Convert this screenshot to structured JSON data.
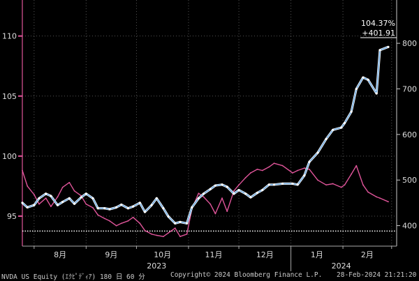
{
  "chart_data": {
    "type": "line",
    "title": "",
    "xlabel": "",
    "ylabel": "",
    "x_tick_labels": [
      "8月",
      "9月",
      "10月",
      "11月",
      "12月",
      "1月",
      "2月"
    ],
    "year_labels": [
      "2023",
      "2024"
    ],
    "left_axis": {
      "ticks": [
        95,
        100,
        105,
        110
      ],
      "range": [
        92.5,
        113
      ]
    },
    "right_axis": {
      "ticks": [
        400,
        500,
        600,
        700,
        800
      ],
      "range": [
        355,
        895
      ]
    },
    "reference_line": {
      "axis": "right",
      "value": 388,
      "style": "dotted"
    },
    "readout": {
      "percent": "104.37%",
      "price": "+401.91"
    },
    "series": [
      {
        "axis": "left",
        "color": "#e0559a",
        "x": [
          "2023-07-25",
          "2023-07-28",
          "2023-08-01",
          "2023-08-04",
          "2023-08-08",
          "2023-08-11",
          "2023-08-15",
          "2023-08-18",
          "2023-08-22",
          "2023-08-25",
          "2023-08-29",
          "2023-09-01",
          "2023-09-05",
          "2023-09-08",
          "2023-09-12",
          "2023-09-15",
          "2023-09-19",
          "2023-09-22",
          "2023-09-26",
          "2023-09-29",
          "2023-10-03",
          "2023-10-06",
          "2023-10-10",
          "2023-10-13",
          "2023-10-17",
          "2023-10-20",
          "2023-10-24",
          "2023-10-27",
          "2023-10-31",
          "2023-11-03",
          "2023-11-07",
          "2023-11-10",
          "2023-11-14",
          "2023-11-17",
          "2023-11-21",
          "2023-11-24",
          "2023-11-28",
          "2023-12-01",
          "2023-12-05",
          "2023-12-08",
          "2023-12-12",
          "2023-12-15",
          "2023-12-19",
          "2023-12-22",
          "2023-12-27",
          "2024-01-02",
          "2024-01-05",
          "2024-01-09",
          "2024-01-12",
          "2024-01-17",
          "2024-01-22",
          "2024-01-26",
          "2024-01-31",
          "2024-02-02",
          "2024-02-06",
          "2024-02-09",
          "2024-02-13",
          "2024-02-16",
          "2024-02-21",
          "2024-02-23",
          "2024-02-28"
        ],
        "y": [
          98.8,
          97.5,
          96.8,
          96.0,
          96.5,
          95.8,
          96.6,
          97.4,
          97.8,
          97.1,
          96.7,
          96.0,
          95.7,
          95.1,
          94.8,
          94.6,
          94.2,
          94.4,
          94.6,
          94.9,
          94.4,
          93.8,
          93.5,
          93.4,
          93.3,
          93.6,
          94.0,
          93.3,
          93.5,
          95.6,
          96.9,
          96.6,
          96.0,
          95.2,
          96.5,
          95.4,
          97.1,
          97.6,
          98.2,
          98.6,
          98.9,
          98.8,
          99.1,
          99.4,
          99.2,
          98.6,
          98.8,
          99.0,
          98.9,
          98.0,
          97.6,
          97.7,
          97.4,
          97.6,
          98.5,
          99.2,
          97.6,
          97.0,
          96.6,
          96.5,
          96.2
        ]
      },
      {
        "axis": "right",
        "color": "#6ea9e0",
        "x": [
          "2023-07-25",
          "2023-07-28",
          "2023-08-01",
          "2023-08-04",
          "2023-08-08",
          "2023-08-11",
          "2023-08-15",
          "2023-08-18",
          "2023-08-22",
          "2023-08-25",
          "2023-08-29",
          "2023-09-01",
          "2023-09-05",
          "2023-09-08",
          "2023-09-12",
          "2023-09-15",
          "2023-09-19",
          "2023-09-22",
          "2023-09-26",
          "2023-09-29",
          "2023-10-03",
          "2023-10-06",
          "2023-10-10",
          "2023-10-13",
          "2023-10-17",
          "2023-10-20",
          "2023-10-24",
          "2023-10-27",
          "2023-10-31",
          "2023-11-03",
          "2023-11-07",
          "2023-11-10",
          "2023-11-14",
          "2023-11-17",
          "2023-11-21",
          "2023-11-24",
          "2023-11-28",
          "2023-12-01",
          "2023-12-05",
          "2023-12-08",
          "2023-12-12",
          "2023-12-15",
          "2023-12-19",
          "2023-12-22",
          "2023-12-27",
          "2024-01-02",
          "2024-01-05",
          "2024-01-09",
          "2024-01-12",
          "2024-01-17",
          "2024-01-22",
          "2024-01-26",
          "2024-01-31",
          "2024-02-02",
          "2024-02-06",
          "2024-02-09",
          "2024-02-13",
          "2024-02-16",
          "2024-02-21",
          "2024-02-23",
          "2024-02-28"
        ],
        "y": [
          450,
          440,
          445,
          460,
          470,
          465,
          445,
          452,
          460,
          448,
          462,
          470,
          460,
          438,
          438,
          436,
          440,
          446,
          438,
          442,
          450,
          430,
          445,
          460,
          438,
          420,
          405,
          408,
          405,
          440,
          460,
          470,
          480,
          488,
          490,
          485,
          470,
          478,
          470,
          462,
          472,
          478,
          490,
          490,
          492,
          492,
          490,
          510,
          540,
          560,
          590,
          610,
          615,
          625,
          650,
          700,
          725,
          720,
          690,
          785,
          792
        ]
      }
    ]
  },
  "footer": {
    "ticker": "NVDA US Equity (ｴｸﾋﾟﾃﾞｨｱ) 180 日 60 分",
    "copyright": "Copyright© 2024 Bloomberg Finance L.P.",
    "timestamp": "28-Feb-2024 21:21:20"
  }
}
